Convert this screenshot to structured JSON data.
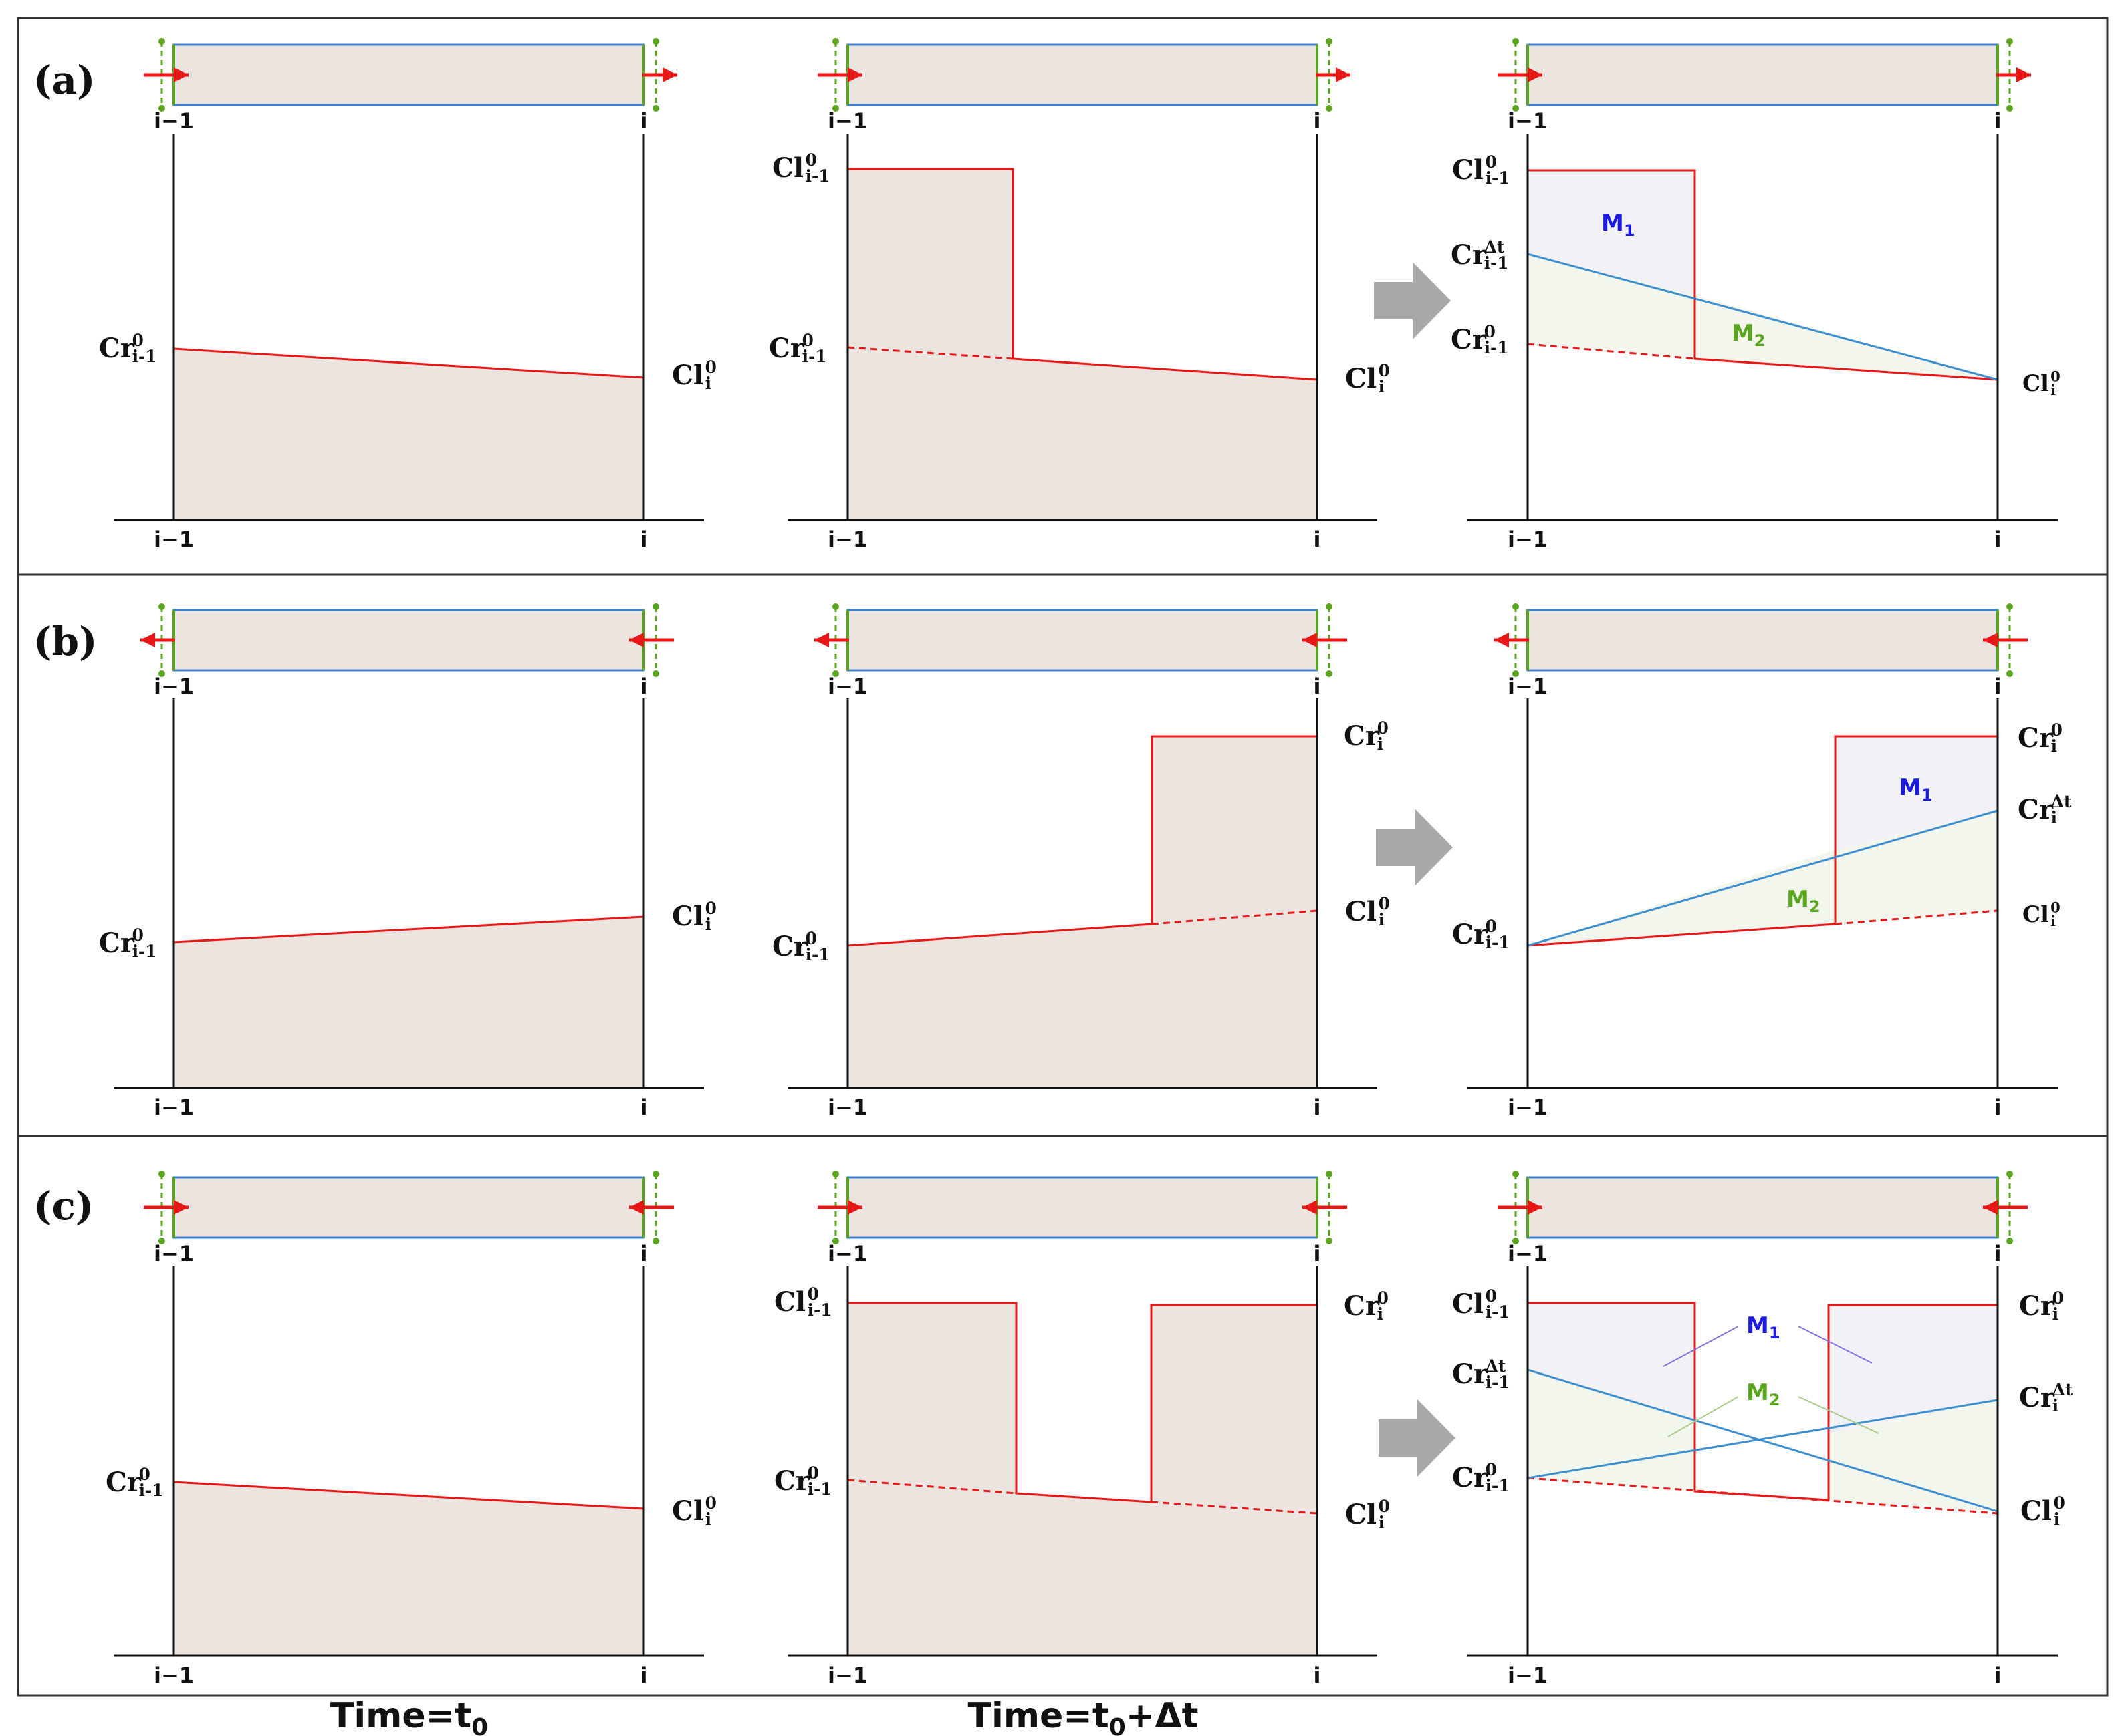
{
  "rows": [
    {
      "label": "(a)"
    },
    {
      "label": "(b)"
    },
    {
      "label": "(c)"
    }
  ],
  "axis": {
    "left_tick": "i−1",
    "right_tick": "i"
  },
  "symbols": {
    "cr_im1_0": {
      "base": "Cr",
      "sup": "0",
      "sub": "i-1"
    },
    "cl_i_0": {
      "base": "Cl",
      "sup": "0",
      "sub": "i"
    },
    "cl_im1_0": {
      "base": "Cl",
      "sup": "0",
      "sub": "i-1"
    },
    "cr_i_0": {
      "base": "Cr",
      "sup": "0",
      "sub": "i"
    },
    "cr_im1_dt": {
      "base": "Cr",
      "sup": "Δt",
      "sub": "i-1"
    },
    "cr_i_dt": {
      "base": "Cr",
      "sup": "Δt",
      "sub": "i"
    }
  },
  "masses": {
    "m1": {
      "base": "M",
      "sub": "1"
    },
    "m2": {
      "base": "M",
      "sub": "2"
    }
  },
  "footer": {
    "time0": {
      "base": "Time=t",
      "sub": "0"
    },
    "time1": {
      "base": "Time=t",
      "sub": "0",
      "tail": "+Δt"
    }
  },
  "colors": {
    "fill": "#ece5df",
    "red": "#e81818",
    "blue": "#3f8fcf",
    "green": "#5aa51e",
    "m1_text": "#1a1ae0",
    "m2_text": "#5aa51e",
    "arrow": "#a9a9a9",
    "cell_border": "#3f7fd0"
  }
}
